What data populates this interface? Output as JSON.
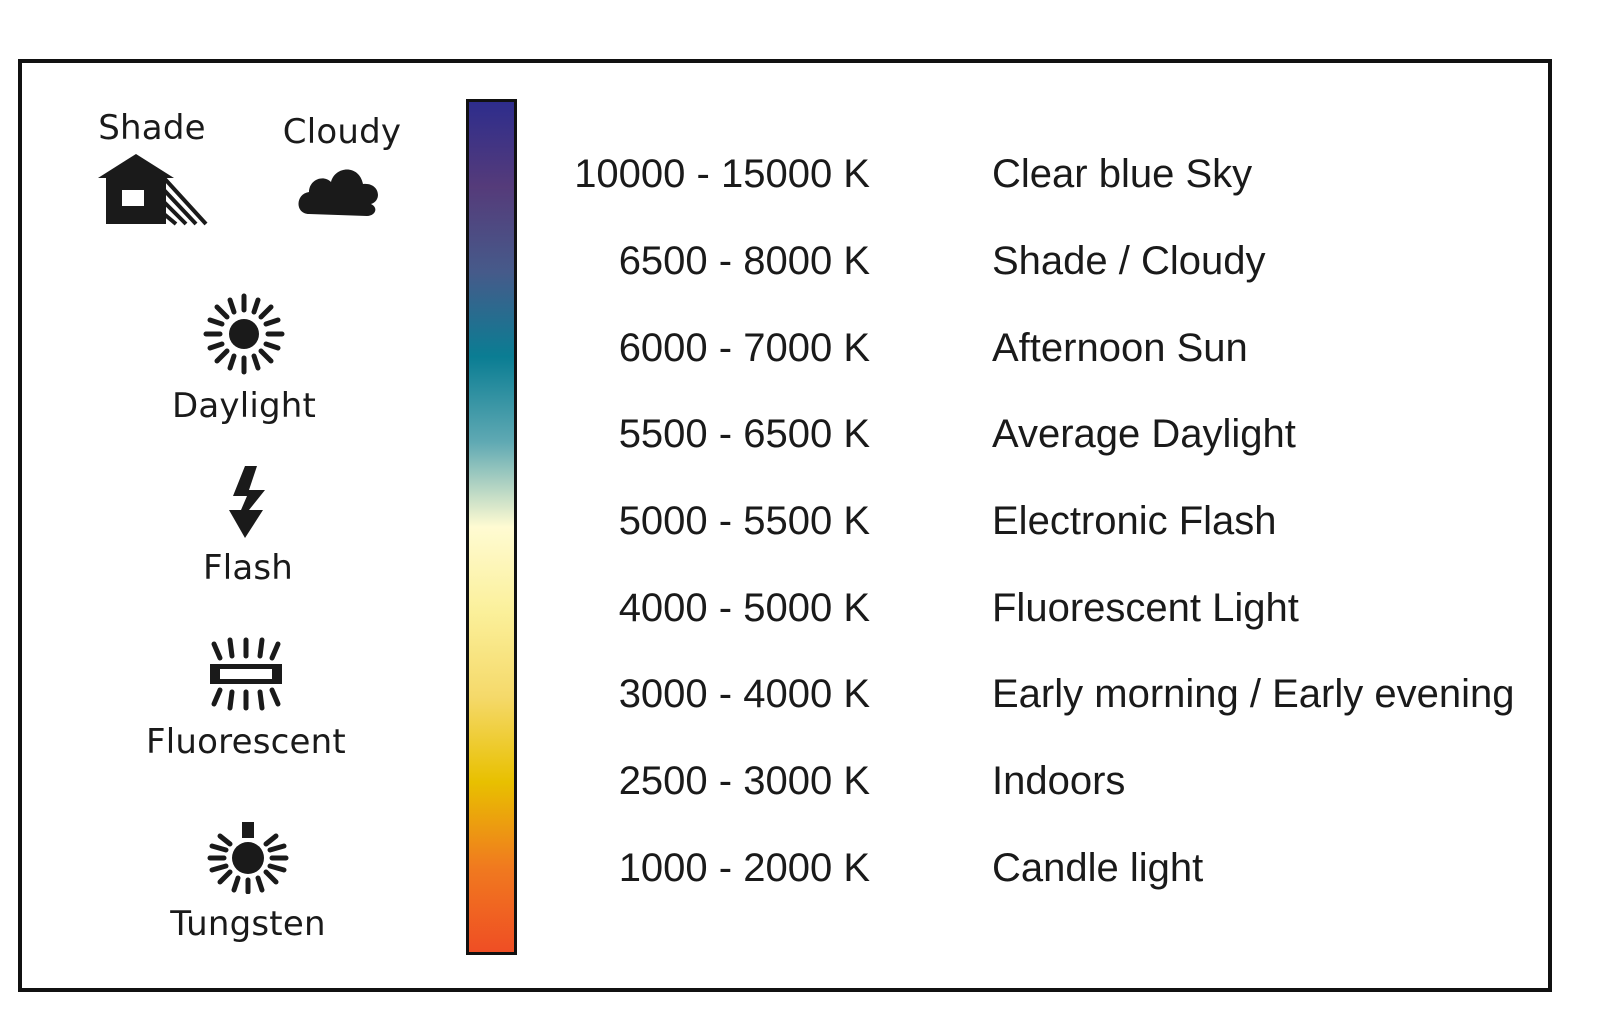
{
  "icons": {
    "shade": {
      "label": "Shade",
      "icon": "house-shade-icon"
    },
    "cloudy": {
      "label": "Cloudy",
      "icon": "cloud-icon"
    },
    "daylight": {
      "label": "Daylight",
      "icon": "sun-icon"
    },
    "flash": {
      "label": "Flash",
      "icon": "lightning-bolt-icon"
    },
    "fluorescent": {
      "label": "Fluorescent",
      "icon": "fluorescent-tube-icon"
    },
    "tungsten": {
      "label": "Tungsten",
      "icon": "light-bulb-icon"
    }
  },
  "scale": {
    "gradient_colors": [
      "#2e2d8c",
      "#553b7a",
      "#465a8a",
      "#0a7d93",
      "#5fa9b3",
      "#fffbd2",
      "#fbf09a",
      "#f5d96a",
      "#e8c000",
      "#f07a1f",
      "#ef4e24"
    ]
  },
  "rows": [
    {
      "kelvin": "10000 - 15000 K",
      "description": "Clear blue Sky"
    },
    {
      "kelvin": "6500 - 8000 K",
      "description": "Shade / Cloudy"
    },
    {
      "kelvin": "6000 - 7000 K",
      "description": "Afternoon Sun"
    },
    {
      "kelvin": "5500 - 6500 K",
      "description": "Average Daylight"
    },
    {
      "kelvin": "5000 - 5500 K",
      "description": "Electronic Flash"
    },
    {
      "kelvin": "4000 - 5000 K",
      "description": "Fluorescent Light"
    },
    {
      "kelvin": "3000 - 4000 K",
      "description": "Early morning / Early evening"
    },
    {
      "kelvin": "2500 - 3000 K",
      "description": "Indoors"
    },
    {
      "kelvin": "1000 - 2000 K",
      "description": "Candle light"
    }
  ]
}
